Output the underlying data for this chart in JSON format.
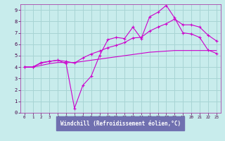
{
  "xlabel": "Windchill (Refroidissement éolien,°C)",
  "xlim": [
    -0.5,
    23.5
  ],
  "ylim": [
    0,
    9.5
  ],
  "xticks": [
    0,
    1,
    2,
    3,
    4,
    5,
    6,
    7,
    8,
    9,
    10,
    11,
    12,
    13,
    14,
    15,
    16,
    17,
    18,
    19,
    20,
    21,
    22,
    23
  ],
  "yticks": [
    0,
    1,
    2,
    3,
    4,
    5,
    6,
    7,
    8,
    9
  ],
  "bg_color": "#c8ecec",
  "grid_color": "#a8d4d4",
  "line_color": "#cc00cc",
  "xlabel_bg": "#7070b0",
  "line1_x": [
    0,
    1,
    2,
    3,
    4,
    5,
    6,
    7,
    8,
    9,
    10,
    11,
    12,
    13,
    14,
    15,
    16,
    17,
    18,
    19,
    20,
    21,
    22,
    23
  ],
  "line1_y": [
    4.0,
    4.0,
    4.4,
    4.5,
    4.6,
    4.3,
    0.4,
    2.4,
    3.2,
    5.0,
    6.4,
    6.6,
    6.5,
    7.5,
    6.5,
    8.4,
    8.8,
    9.4,
    8.3,
    7.0,
    6.9,
    6.6,
    5.5,
    5.2
  ],
  "line2_x": [
    0,
    1,
    2,
    3,
    4,
    5,
    6,
    7,
    8,
    9,
    10,
    11,
    12,
    13,
    14,
    15,
    16,
    17,
    18,
    19,
    20,
    21,
    22,
    23
  ],
  "line2_y": [
    4.0,
    4.0,
    4.35,
    4.5,
    4.6,
    4.5,
    4.35,
    4.8,
    5.15,
    5.4,
    5.7,
    5.9,
    6.15,
    6.55,
    6.6,
    7.15,
    7.5,
    7.8,
    8.2,
    7.7,
    7.7,
    7.5,
    6.8,
    6.3
  ],
  "line3_x": [
    0,
    1,
    2,
    3,
    4,
    5,
    6,
    7,
    8,
    9,
    10,
    11,
    12,
    13,
    14,
    15,
    16,
    17,
    18,
    19,
    20,
    21,
    22,
    23
  ],
  "line3_y": [
    4.0,
    4.0,
    4.15,
    4.3,
    4.4,
    4.4,
    4.4,
    4.5,
    4.6,
    4.7,
    4.8,
    4.9,
    5.0,
    5.1,
    5.2,
    5.3,
    5.35,
    5.4,
    5.45,
    5.45,
    5.45,
    5.45,
    5.45,
    5.45
  ]
}
